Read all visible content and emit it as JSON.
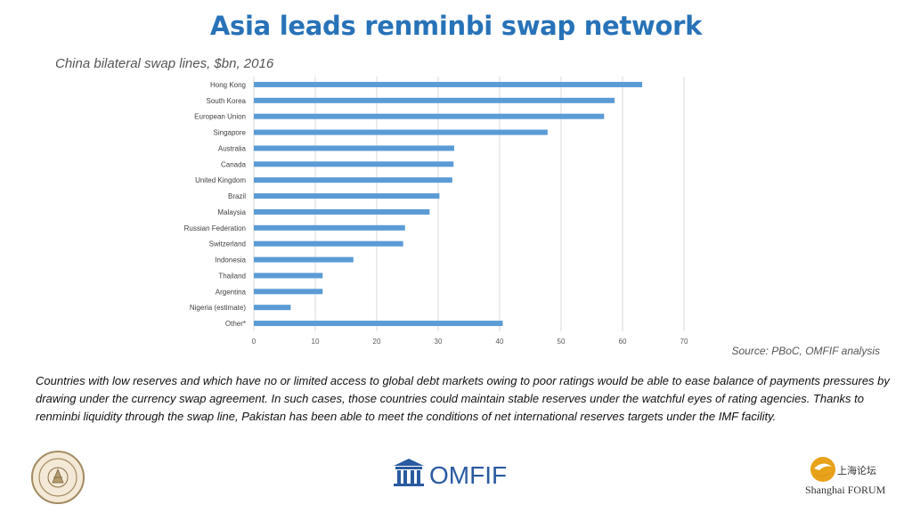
{
  "header": {
    "title": "Asia leads renminbi swap network",
    "subtitle": "China bilateral swap lines, $bn, 2016"
  },
  "source": "Source: PBoC, OMFIF analysis",
  "body_text": "Countries with low reserves and which have no or limited access to global debt markets owing to poor ratings would be able to ease balance of payments pressures by drawing under the currency swap agreement. In such cases, those countries could maintain stable reserves under the watchful eyes of rating agencies. Thanks to renminbi liquidity through the swap line, Pakistan has been able to meet the conditions of net international reserves targets under the IMF facility.",
  "logos": {
    "omfif": "OMFIF",
    "shanghai_cn": "上海论坛",
    "shanghai_en": "Shanghai FORUM"
  },
  "colors": {
    "title": "#2872b8",
    "bar": "#5b9bd5",
    "gridline": "#d9d9d9"
  },
  "chart_data": {
    "type": "bar",
    "orientation": "horizontal",
    "categories": [
      "Hong Kong",
      "South Korea",
      "European Union",
      "Singapore",
      "Australia",
      "Canada",
      "United Kingdom",
      "Brazil",
      "Malaysia",
      "Russian Federation",
      "Switzerland",
      "Indonesia",
      "Thailand",
      "Argentina",
      "Nigeria (estimate)",
      "Other*"
    ],
    "values": [
      63.2,
      58.7,
      57.0,
      47.8,
      32.6,
      32.5,
      32.3,
      30.2,
      28.6,
      24.6,
      24.3,
      16.2,
      11.2,
      11.2,
      6.0,
      40.5
    ],
    "xlim": [
      0,
      70
    ],
    "xticks": [
      0,
      10,
      20,
      30,
      40,
      50,
      60,
      70
    ],
    "grid": true,
    "xlabel": "",
    "ylabel": ""
  }
}
